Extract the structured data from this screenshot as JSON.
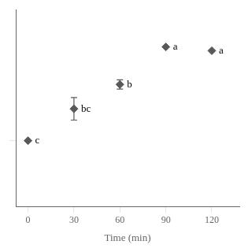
{
  "chart_data": {
    "type": "scatter",
    "x": [
      0,
      30,
      60,
      90,
      120
    ],
    "series": [
      {
        "values": [
          0.35,
          0.52,
          0.65,
          0.85,
          0.83
        ],
        "yerr": [
          0.0,
          0.06,
          0.025,
          0.0,
          0.0
        ],
        "point_labels": [
          "c",
          "bc",
          "b",
          "a",
          "a"
        ],
        "color": "#595959",
        "marker": "diamond"
      }
    ],
    "xlabel": "Time (min)",
    "xlim": [
      -8,
      138
    ],
    "xticks": [
      0,
      30,
      60,
      90,
      120
    ],
    "ylim": [
      0.0,
      1.05
    ],
    "yticks": [
      0.35
    ],
    "tick_labels": "x",
    "grid": false
  }
}
